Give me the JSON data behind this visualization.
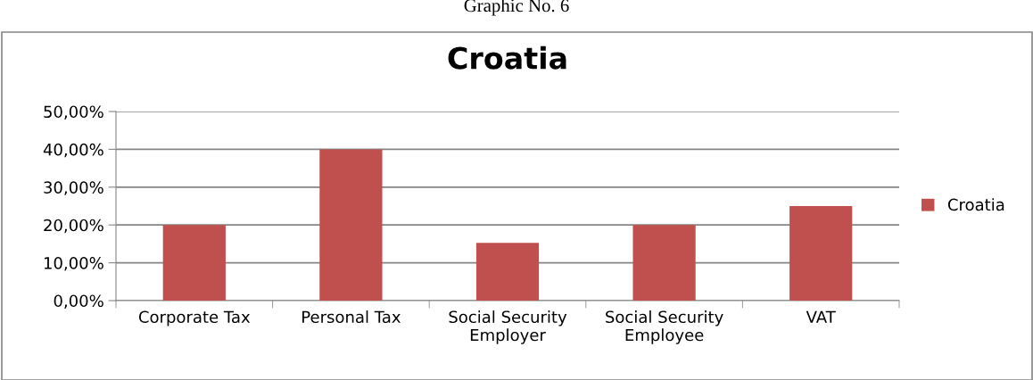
{
  "chart_data": {
    "type": "bar",
    "title": "Croatia",
    "annotations": [
      "Graphic No. 6"
    ],
    "categories": [
      "Corporate Tax",
      "Personal Tax",
      "Social Security\nEmployer",
      "Social Security\nEmployee",
      "VAT"
    ],
    "series": [
      {
        "name": "Croatia",
        "color": "#c0504d",
        "values": [
          20,
          40,
          15.3,
          20,
          25
        ]
      }
    ],
    "ylim": [
      0,
      50
    ],
    "yticks": [
      {
        "value": 0,
        "label": "0,00%"
      },
      {
        "value": 10,
        "label": "10,00%"
      },
      {
        "value": 20,
        "label": "20,00%"
      },
      {
        "value": 30,
        "label": "30,00%"
      },
      {
        "value": 40,
        "label": "40,00%"
      },
      {
        "value": 50,
        "label": "50,00%"
      }
    ],
    "grid": "y",
    "legend": "right"
  }
}
